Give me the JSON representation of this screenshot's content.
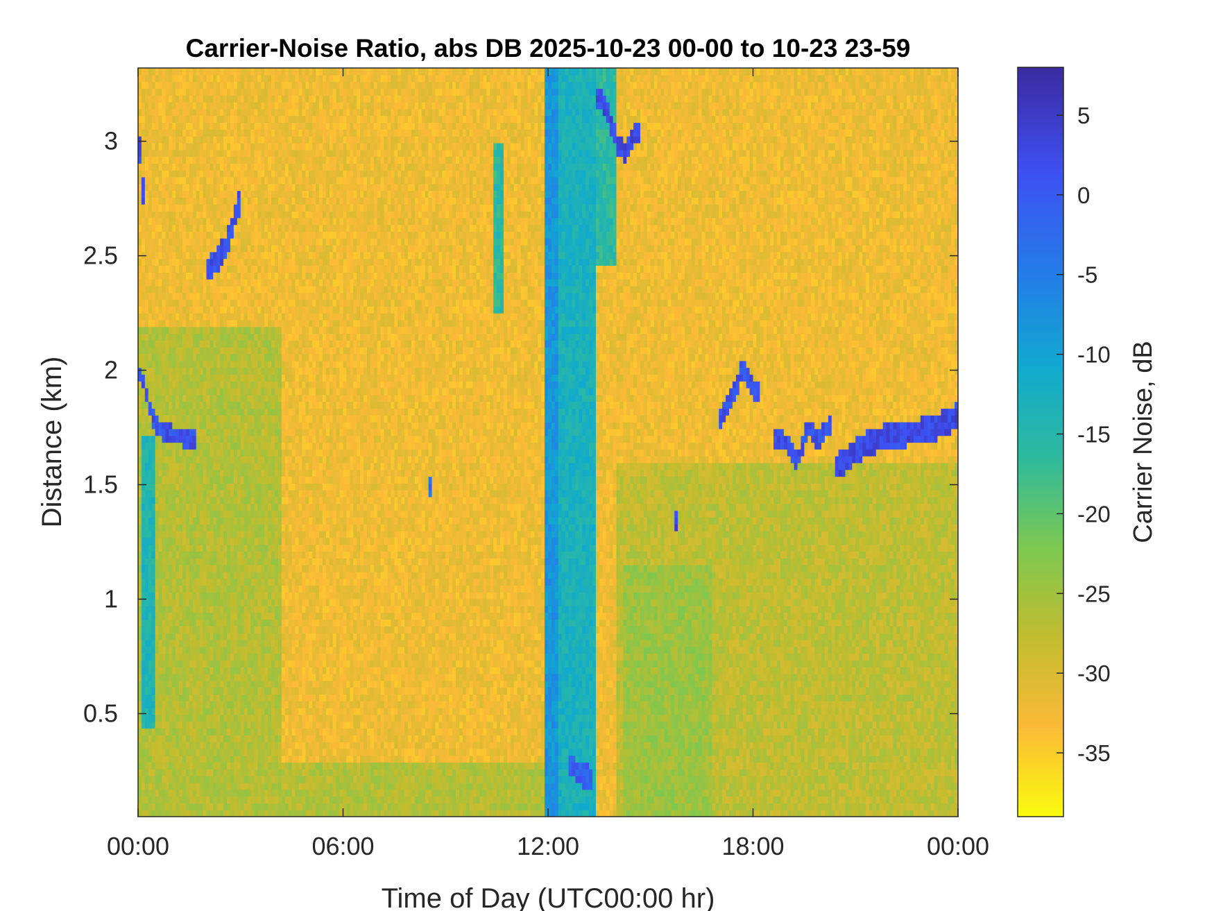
{
  "chart_data": {
    "type": "heatmap",
    "title": "Carrier-Noise Ratio, abs DB 2025-10-23 00-00 to 10-23 23-59",
    "xlabel": "Time of Day (UTC00:00 hr)",
    "ylabel": "Distance (km)",
    "x_unit": "hour of day",
    "xlim": [
      0,
      24
    ],
    "ylim": [
      0.05,
      3.32
    ],
    "x_ticks": [
      {
        "value": 0,
        "label": "00:00"
      },
      {
        "value": 6,
        "label": "06:00"
      },
      {
        "value": 12,
        "label": "12:00"
      },
      {
        "value": 18,
        "label": "18:00"
      },
      {
        "value": 24,
        "label": "00:00"
      }
    ],
    "y_ticks": [
      {
        "value": 0.5,
        "label": "0.5"
      },
      {
        "value": 1,
        "label": "1"
      },
      {
        "value": 1.5,
        "label": "1.5"
      },
      {
        "value": 2,
        "label": "2"
      },
      {
        "value": 2.5,
        "label": "2.5"
      },
      {
        "value": 3,
        "label": "3"
      }
    ],
    "colorbar": {
      "label": "Carrier Noise, dB",
      "clim": [
        -39,
        8
      ],
      "colormap": "parula-reversed",
      "colors_low_to_high": [
        "#f9fb0e",
        "#fbba37",
        "#c2bc2f",
        "#7cc850",
        "#2dba9e",
        "#11a9cf",
        "#237ee8",
        "#3e50f2",
        "#3b2aa0"
      ],
      "ticks": [
        {
          "value": 5,
          "label": "5"
        },
        {
          "value": 0,
          "label": "0"
        },
        {
          "value": -5,
          "label": "-5"
        },
        {
          "value": -10,
          "label": "-10"
        },
        {
          "value": -15,
          "label": "-15"
        },
        {
          "value": -20,
          "label": "-20"
        },
        {
          "value": -25,
          "label": "-25"
        },
        {
          "value": -30,
          "label": "-30"
        },
        {
          "value": -35,
          "label": "-35"
        }
      ]
    },
    "background_value_db": -32,
    "features": [
      {
        "kind": "column",
        "x_start": 11.95,
        "x_end": 12.25,
        "y_start": 0.05,
        "y_end": 3.32,
        "value_db": -7
      },
      {
        "kind": "column",
        "x_start": 12.25,
        "x_end": 13.4,
        "y_start": 0.05,
        "y_end": 3.32,
        "value_db": -12
      },
      {
        "kind": "column",
        "x_start": 13.4,
        "x_end": 14.0,
        "y_start": 2.45,
        "y_end": 3.32,
        "value_db": -15
      },
      {
        "kind": "band",
        "points": [
          [
            0.1,
            1.98
          ],
          [
            0.4,
            1.8
          ],
          [
            0.7,
            1.73
          ],
          [
            1.0,
            1.72
          ],
          [
            1.3,
            1.71
          ],
          [
            1.6,
            1.7
          ]
        ],
        "thickness_km": 0.08,
        "value_db": 2
      },
      {
        "kind": "band",
        "points": [
          [
            0.02,
            3.05
          ],
          [
            0.05,
            2.95
          ],
          [
            0.08,
            2.85
          ],
          [
            0.1,
            2.78
          ]
        ],
        "thickness_km": 0.12,
        "value_db": 3
      },
      {
        "kind": "band",
        "points": [
          [
            2.1,
            2.45
          ],
          [
            2.4,
            2.5
          ],
          [
            2.6,
            2.55
          ],
          [
            2.8,
            2.65
          ],
          [
            3.0,
            2.75
          ]
        ],
        "thickness_km": 0.1,
        "value_db": 2
      },
      {
        "kind": "band",
        "points": [
          [
            13.5,
            3.2
          ],
          [
            13.8,
            3.1
          ],
          [
            14.0,
            3.0
          ],
          [
            14.3,
            2.95
          ],
          [
            14.6,
            3.05
          ]
        ],
        "thickness_km": 0.09,
        "value_db": 3
      },
      {
        "kind": "band",
        "points": [
          [
            12.7,
            0.28
          ],
          [
            12.9,
            0.24
          ],
          [
            13.2,
            0.22
          ]
        ],
        "thickness_km": 0.1,
        "value_db": 0
      },
      {
        "kind": "band",
        "points": [
          [
            17.1,
            1.8
          ],
          [
            17.4,
            1.9
          ],
          [
            17.7,
            2.0
          ],
          [
            17.9,
            1.95
          ],
          [
            18.1,
            1.9
          ]
        ],
        "thickness_km": 0.09,
        "value_db": 2
      },
      {
        "kind": "band",
        "points": [
          [
            18.7,
            1.7
          ],
          [
            19.0,
            1.68
          ],
          [
            19.3,
            1.6
          ],
          [
            19.6,
            1.75
          ],
          [
            19.9,
            1.7
          ],
          [
            20.2,
            1.75
          ]
        ],
        "thickness_km": 0.08,
        "value_db": 2
      },
      {
        "kind": "band",
        "points": [
          [
            20.5,
            1.58
          ],
          [
            20.8,
            1.62
          ],
          [
            21.2,
            1.67
          ],
          [
            21.7,
            1.7
          ],
          [
            22.2,
            1.72
          ],
          [
            22.7,
            1.73
          ],
          [
            23.2,
            1.74
          ],
          [
            23.7,
            1.78
          ],
          [
            24.0,
            1.8
          ]
        ],
        "thickness_km": 0.11,
        "value_db": 3
      },
      {
        "kind": "streak",
        "x_start": 10.45,
        "x_end": 10.7,
        "y_start": 2.25,
        "y_end": 3.0,
        "value_db": -15
      },
      {
        "kind": "streak",
        "x_start": 0.1,
        "x_end": 0.45,
        "y_start": 0.45,
        "y_end": 1.7,
        "value_db": -13
      },
      {
        "kind": "streak",
        "x_start": 15.75,
        "x_end": 15.85,
        "y_start": 1.3,
        "y_end": 1.38,
        "value_db": 3
      },
      {
        "kind": "streak",
        "x_start": 8.5,
        "x_end": 8.6,
        "y_start": 1.45,
        "y_end": 1.55,
        "value_db": -3
      },
      {
        "kind": "region",
        "x_start": 0,
        "x_end": 4.2,
        "y_start": 0.05,
        "y_end": 2.2,
        "value_db": -26
      },
      {
        "kind": "region",
        "x_start": 4.2,
        "x_end": 11.9,
        "y_start": 0.05,
        "y_end": 0.3,
        "value_db": -26
      },
      {
        "kind": "region",
        "x_start": 14.0,
        "x_end": 24.0,
        "y_start": 0.05,
        "y_end": 1.6,
        "value_db": -27
      },
      {
        "kind": "region",
        "x_start": 14.2,
        "x_end": 16.8,
        "y_start": 0.05,
        "y_end": 1.15,
        "value_db": -24
      }
    ]
  }
}
